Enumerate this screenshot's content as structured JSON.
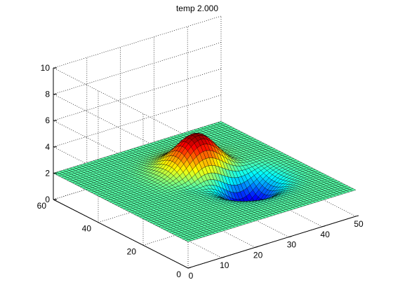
{
  "chart_data": {
    "type": "surface",
    "title": "temp 2.000",
    "xlabel": "",
    "ylabel": "",
    "zlabel": "",
    "xlim": [
      0,
      50
    ],
    "ylim": [
      0,
      60
    ],
    "zlim": [
      0,
      10
    ],
    "x_ticks": [
      "0",
      "10",
      "20",
      "30",
      "40",
      "50"
    ],
    "y_ticks": [
      "0",
      "20",
      "40",
      "60"
    ],
    "z_ticks": [
      "0",
      "2",
      "4",
      "6",
      "8",
      "10"
    ],
    "grid": true,
    "colormap": "jet",
    "edge_color": "#000000",
    "grid_size": [
      50,
      50
    ],
    "base_level": 2.0,
    "z_range_shown": [
      -0.3,
      4.7
    ],
    "features": [
      {
        "kind": "peak",
        "x": 28,
        "y": 38,
        "height": 4.7
      },
      {
        "kind": "valley",
        "x": 33,
        "y": 23,
        "depth": -0.3
      }
    ]
  }
}
